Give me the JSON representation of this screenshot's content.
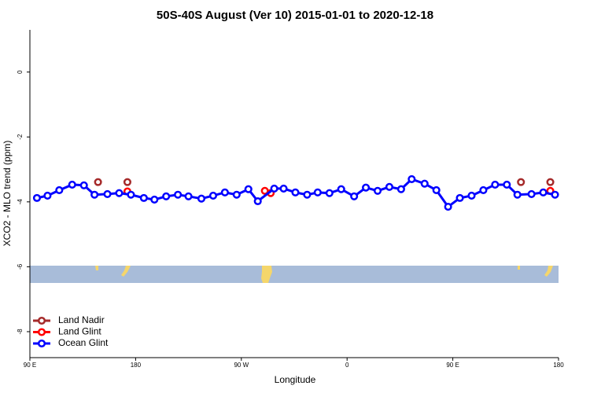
{
  "chart_data": {
    "type": "scatter",
    "title": "50S-40S August (Ver 10)   2015-01-01 to 2020-12-18",
    "x_label": "Longitude",
    "y_label": "XCO2 - MLO trend (ppm)",
    "xlim": [
      90,
      540
    ],
    "xticks": [
      {
        "value": 90,
        "label": "90 E"
      },
      180,
      {
        "value": 270,
        "label": "90 W"
      },
      {
        "value": 360,
        "label": "0"
      },
      {
        "value": 450,
        "label": "90 E"
      },
      {
        "value": 540,
        "label": "180"
      }
    ],
    "ylim": [
      -8.8,
      1.3
    ],
    "yticks": [
      0,
      -2,
      -4,
      -6,
      -8
    ],
    "legend": "bottom-left",
    "series": [
      {
        "name": "Land Nadir",
        "color": "#a52a2a",
        "connected": false,
        "x": [
          148,
          173,
          508,
          533
        ],
        "values": [
          -3.39,
          -3.39,
          -3.39,
          -3.39
        ]
      },
      {
        "name": "Land Glint",
        "color": "#ff0000",
        "connected": false,
        "x": [
          173,
          290,
          295,
          533
        ],
        "values": [
          -3.68,
          -3.66,
          -3.73,
          -3.66
        ]
      },
      {
        "name": "Ocean Glint",
        "color": "#0000ff",
        "connected": true,
        "x": [
          96,
          105,
          115,
          126,
          136,
          145,
          156,
          166,
          176,
          187,
          196,
          206,
          216,
          225,
          236,
          246,
          256,
          266,
          276,
          284,
          298,
          306,
          316,
          326,
          335,
          345,
          355,
          366,
          376,
          386,
          396,
          406,
          415,
          426,
          436,
          446,
          456,
          466,
          476,
          486,
          496,
          505,
          517,
          527,
          537
        ],
        "values": [
          -3.88,
          -3.81,
          -3.64,
          -3.47,
          -3.49,
          -3.78,
          -3.76,
          -3.73,
          -3.78,
          -3.88,
          -3.93,
          -3.83,
          -3.78,
          -3.83,
          -3.9,
          -3.81,
          -3.71,
          -3.78,
          -3.61,
          -3.98,
          -3.59,
          -3.59,
          -3.71,
          -3.78,
          -3.71,
          -3.73,
          -3.61,
          -3.83,
          -3.56,
          -3.66,
          -3.54,
          -3.61,
          -3.3,
          -3.44,
          -3.64,
          -4.15,
          -3.88,
          -3.81,
          -3.64,
          -3.47,
          -3.47,
          -3.78,
          -3.76,
          -3.71,
          -3.78
        ]
      }
    ]
  }
}
